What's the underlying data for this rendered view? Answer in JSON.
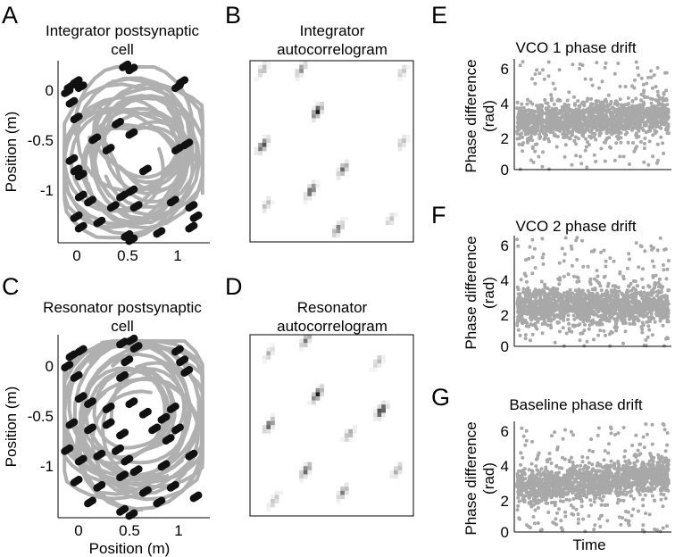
{
  "panels": {
    "A": {
      "letter": "A",
      "title_1": "Integrator postsynaptic",
      "title_2": "cell"
    },
    "B": {
      "letter": "B",
      "title_1": "Integrator",
      "title_2": "autocorrelogram"
    },
    "C": {
      "letter": "C",
      "title_1": "Resonator postsynaptic",
      "title_2": "cell"
    },
    "D": {
      "letter": "D",
      "title_1": "Resonator",
      "title_2": "autocorrelogram"
    },
    "E": {
      "letter": "E",
      "title": "VCO 1 phase drift"
    },
    "F": {
      "letter": "F",
      "title": "VCO 2 phase drift"
    },
    "G": {
      "letter": "G",
      "title": "Baseline phase drift"
    }
  },
  "axes": {
    "position_xlabel": "Position (m)",
    "position_ylabel": "Position (m)",
    "phase_ylabel_1": "Phase difference",
    "phase_ylabel_2": "(rad)",
    "time_xlabel": "Time",
    "pos_x_ticks": [
      "0",
      "0.5",
      "1"
    ],
    "pos_y_ticks": [
      "0",
      "-0.5",
      "-1"
    ],
    "phase_y_ticks": [
      "6",
      "4",
      "2",
      "0"
    ]
  },
  "chart_data": [
    {
      "id": "A",
      "type": "scatter",
      "title": "Integrator postsynaptic cell",
      "ylabel": "Position (m)",
      "xlim": [
        -0.25,
        1.4
      ],
      "ylim": [
        -1.45,
        0.3
      ],
      "xticks": [
        0,
        0.5,
        1
      ],
      "yticks": [
        0,
        -0.5,
        -1
      ],
      "trajectory_color": "#b0b0b0",
      "spike_color": "#111111",
      "spike_positions": [
        [
          -0.15,
          0.0
        ],
        [
          -0.12,
          0.05
        ],
        [
          -0.1,
          -0.1
        ],
        [
          -0.05,
          0.1
        ],
        [
          0.0,
          0.05
        ],
        [
          0.55,
          0.22
        ],
        [
          0.48,
          0.25
        ],
        [
          1.05,
          0.05
        ],
        [
          1.1,
          0.1
        ],
        [
          -0.05,
          -0.25
        ],
        [
          0.4,
          -0.3
        ],
        [
          0.55,
          -0.4
        ],
        [
          0.15,
          -0.45
        ],
        [
          0.3,
          -0.55
        ],
        [
          -0.1,
          -0.65
        ],
        [
          -0.05,
          -0.75
        ],
        [
          0.0,
          -0.8
        ],
        [
          0.7,
          -0.75
        ],
        [
          1.05,
          -0.55
        ],
        [
          1.15,
          -0.5
        ],
        [
          0.0,
          -1.0
        ],
        [
          0.1,
          -1.05
        ],
        [
          0.35,
          -1.1
        ],
        [
          0.45,
          -1.0
        ],
        [
          0.55,
          -0.95
        ],
        [
          0.6,
          -1.1
        ],
        [
          1.0,
          -1.05
        ],
        [
          1.2,
          -1.1
        ],
        [
          -0.05,
          -1.2
        ],
        [
          0.0,
          -1.3
        ],
        [
          0.2,
          -1.25
        ],
        [
          0.5,
          -1.38
        ],
        [
          0.55,
          -1.42
        ],
        [
          0.85,
          -1.35
        ],
        [
          1.2,
          -1.3
        ],
        [
          1.25,
          -1.2
        ]
      ]
    },
    {
      "id": "B",
      "type": "heatmap",
      "title": "Integrator autocorrelogram",
      "colormap": "white-to-black",
      "peaks": [
        [
          0.08,
          0.05,
          0.35
        ],
        [
          0.32,
          0.05,
          0.5
        ],
        [
          0.95,
          0.06,
          0.25
        ],
        [
          0.42,
          0.28,
          0.95
        ],
        [
          0.08,
          0.47,
          0.8
        ],
        [
          0.58,
          0.6,
          0.6
        ],
        [
          0.95,
          0.45,
          0.3
        ],
        [
          0.38,
          0.72,
          0.75
        ],
        [
          0.1,
          0.8,
          0.3
        ],
        [
          0.55,
          0.93,
          0.55
        ],
        [
          0.88,
          0.88,
          0.25
        ]
      ]
    },
    {
      "id": "C",
      "type": "scatter",
      "title": "Resonator postsynaptic cell",
      "xlabel": "Position (m)",
      "ylabel": "Position (m)",
      "xlim": [
        -0.25,
        1.4
      ],
      "ylim": [
        -1.45,
        0.3
      ],
      "xticks": [
        0,
        0.5,
        1
      ],
      "yticks": [
        0,
        -0.5,
        -1
      ],
      "trajectory_color": "#b0b0b0",
      "spike_color": "#111111",
      "spike_positions": [
        [
          -0.15,
          0.0
        ],
        [
          -0.1,
          0.1
        ],
        [
          -0.05,
          -0.1
        ],
        [
          0.0,
          0.15
        ],
        [
          0.45,
          0.22
        ],
        [
          0.55,
          0.25
        ],
        [
          0.6,
          0.18
        ],
        [
          1.05,
          0.15
        ],
        [
          1.1,
          0.05
        ],
        [
          1.15,
          -0.05
        ],
        [
          0.5,
          0.05
        ],
        [
          0.45,
          -0.1
        ],
        [
          0.0,
          -0.3
        ],
        [
          0.1,
          -0.35
        ],
        [
          0.3,
          -0.4
        ],
        [
          0.55,
          -0.35
        ],
        [
          0.7,
          -0.45
        ],
        [
          0.9,
          -0.5
        ],
        [
          1.0,
          -0.4
        ],
        [
          -0.1,
          -0.55
        ],
        [
          0.1,
          -0.6
        ],
        [
          0.3,
          -0.55
        ],
        [
          0.45,
          -0.65
        ],
        [
          0.8,
          -0.6
        ],
        [
          0.95,
          -0.7
        ],
        [
          1.05,
          -0.6
        ],
        [
          -0.15,
          -0.8
        ],
        [
          0.0,
          -0.9
        ],
        [
          0.2,
          -0.85
        ],
        [
          0.4,
          -0.8
        ],
        [
          0.5,
          -0.9
        ],
        [
          0.6,
          -1.0
        ],
        [
          0.9,
          -0.95
        ],
        [
          1.2,
          -0.85
        ],
        [
          -0.05,
          -1.1
        ],
        [
          0.2,
          -1.15
        ],
        [
          0.45,
          -1.05
        ],
        [
          0.7,
          -1.2
        ],
        [
          1.0,
          -1.15
        ],
        [
          1.25,
          -1.25
        ],
        [
          0.1,
          -1.3
        ],
        [
          0.45,
          -1.38
        ],
        [
          0.55,
          -1.42
        ],
        [
          0.85,
          -1.3
        ]
      ]
    },
    {
      "id": "D",
      "type": "heatmap",
      "title": "Resonator autocorrelogram",
      "colormap": "white-to-black",
      "peaks": [
        [
          0.12,
          0.1,
          0.3
        ],
        [
          0.35,
          0.03,
          0.55
        ],
        [
          0.8,
          0.15,
          0.3
        ],
        [
          0.42,
          0.33,
          0.9
        ],
        [
          0.12,
          0.5,
          0.7
        ],
        [
          0.62,
          0.55,
          0.4
        ],
        [
          0.82,
          0.42,
          0.95
        ],
        [
          0.35,
          0.75,
          0.65
        ],
        [
          0.58,
          0.87,
          0.5
        ],
        [
          0.92,
          0.75,
          0.35
        ],
        [
          0.15,
          0.92,
          0.3
        ]
      ]
    },
    {
      "id": "E",
      "type": "scatter",
      "title": "VCO 1 phase drift",
      "ylabel": "Phase difference (rad)",
      "ylim": [
        0,
        6.3
      ],
      "yticks": [
        0,
        2,
        4,
        6
      ],
      "point_color": "#a8a8a8",
      "center_start": 2.6,
      "center_end": 3.1,
      "band": 0.9
    },
    {
      "id": "F",
      "type": "scatter",
      "title": "VCO 2 phase drift",
      "ylabel": "Phase difference (rad)",
      "ylim": [
        0,
        6.3
      ],
      "yticks": [
        0,
        2,
        4,
        6
      ],
      "point_color": "#a8a8a8",
      "center_start": 2.3,
      "center_end": 2.3,
      "band": 0.9
    },
    {
      "id": "G",
      "type": "scatter",
      "title": "Baseline phase drift",
      "xlabel": "Time",
      "ylabel": "Phase difference (rad)",
      "ylim": [
        0,
        6.3
      ],
      "yticks": [
        0,
        2,
        4,
        6
      ],
      "point_color": "#a8a8a8",
      "center_start": 2.5,
      "center_end": 3.3,
      "band": 0.9
    }
  ]
}
